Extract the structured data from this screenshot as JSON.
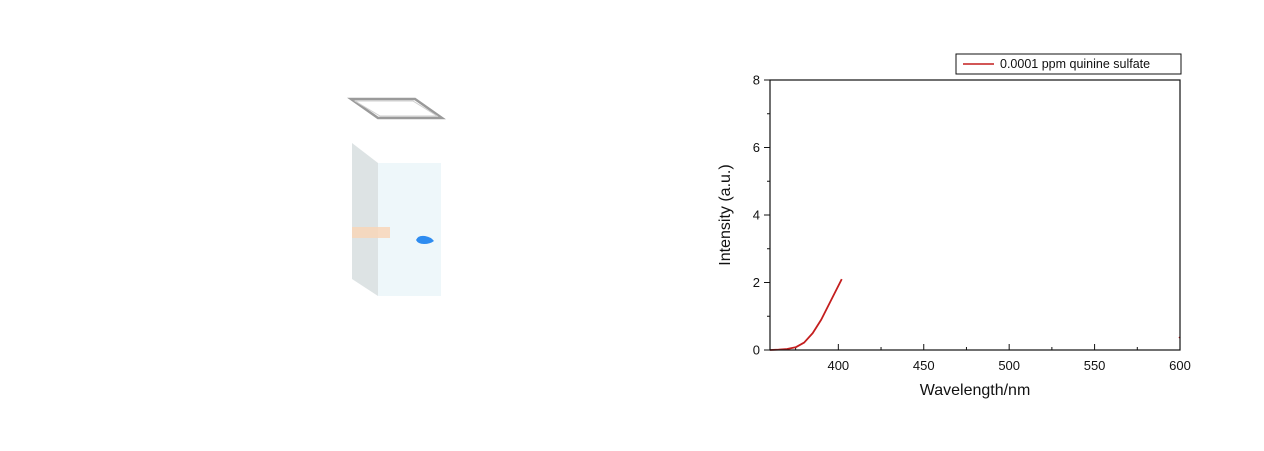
{
  "colors": {
    "series_line": "#c41e1e",
    "axis": "#111111",
    "cuvette_glass": "#eef7fa",
    "cuvette_side": "#dde3e4",
    "cuvette_rim": "#9a9a9a",
    "beam": "#f8d6b8",
    "fluorescence_spot": "#2e8cf0"
  },
  "illustration": {
    "object": "cuvette-icon",
    "beam": "light-beam-icon",
    "spot": "fluorescence-spot-icon"
  },
  "chart_data": {
    "type": "line",
    "title": "",
    "xlabel": "Wavelength/nm",
    "ylabel": "Intensity (a.u.)",
    "xlim": [
      360,
      600
    ],
    "ylim": [
      0,
      8
    ],
    "xticks": [
      400,
      450,
      500,
      550,
      600
    ],
    "yticks": [
      0,
      2,
      4,
      6,
      8
    ],
    "grid": false,
    "legend_position": "top-right",
    "series": [
      {
        "name": "0.0001 ppm quinine sulfate",
        "color": "#c41e1e",
        "x": [
          360,
          365,
          370,
          375,
          380,
          385,
          390,
          395,
          400,
          402
        ],
        "y": [
          0.0,
          0.01,
          0.03,
          0.08,
          0.22,
          0.5,
          0.9,
          1.4,
          1.9,
          2.1
        ]
      },
      {
        "name": "",
        "color": "#c41e1e",
        "x": [
          599.5,
          600
        ],
        "y": [
          0.35,
          0.38
        ]
      }
    ]
  }
}
